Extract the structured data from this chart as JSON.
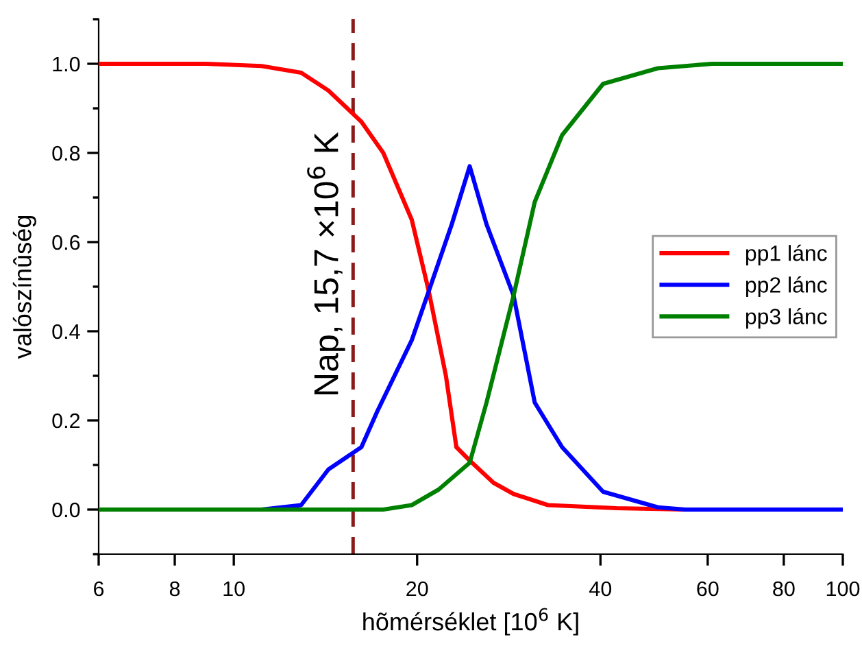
{
  "chart_data": {
    "type": "line",
    "xlabel": "hõmérséklet [10$^{6}$ K]",
    "ylabel": "valószínûség",
    "log": "x",
    "xlim": [
      6,
      100
    ],
    "xticks": [
      6,
      8,
      10,
      20,
      40,
      60,
      80,
      100
    ],
    "ylim": [
      -0.1,
      1.1
    ],
    "yticks": [
      {
        "value": 0.0,
        "label": "0.0"
      },
      {
        "value": 0.2,
        "label": "0.2"
      },
      {
        "value": 0.4,
        "label": "0.4"
      },
      {
        "value": 0.6,
        "label": "0.6"
      },
      {
        "value": 0.8,
        "label": "0.8"
      },
      {
        "value": 1.0,
        "label": "1.0"
      }
    ],
    "grid": false,
    "legend": "right",
    "line_style": "solid",
    "marker": "none",
    "ref_lines": [
      {
        "axis": "x",
        "value": 15.7,
        "label": "Nap, 15,7 ×10$^{6}$ K",
        "color": "#8b1a1a",
        "line_style": "dashed"
      }
    ],
    "series": [
      {
        "name": "pp1 lánc",
        "color": "#ff0000",
        "x": [
          6,
          9.0,
          11.1,
          12.9,
          14.3,
          16.2,
          17.6,
          19.6,
          20.9,
          22.3,
          23.2,
          24.4,
          26.7,
          28.8,
          32.8,
          42.5,
          55.1,
          100
        ],
        "values": [
          1.0,
          1.0,
          0.995,
          0.98,
          0.94,
          0.87,
          0.8,
          0.65,
          0.49,
          0.3,
          0.14,
          0.11,
          0.06,
          0.035,
          0.01,
          0.003,
          0.0,
          0.0
        ]
      },
      {
        "name": "pp2 lánc",
        "color": "#0000ff",
        "x": [
          6,
          11.1,
          12.9,
          14.3,
          16.2,
          17.2,
          19.6,
          20.9,
          22.8,
          24.4,
          26.0,
          28.8,
          31.2,
          34.6,
          40.4,
          49.7,
          55.1,
          100
        ],
        "values": [
          0.0,
          0.0,
          0.01,
          0.09,
          0.14,
          0.22,
          0.38,
          0.49,
          0.64,
          0.77,
          0.64,
          0.48,
          0.24,
          0.14,
          0.04,
          0.005,
          0.0,
          0.0
        ]
      },
      {
        "name": "pp3 lánc",
        "color": "#008000",
        "x": [
          6,
          17.6,
          19.6,
          21.7,
          24.4,
          26.0,
          28.8,
          31.2,
          34.6,
          40.4,
          49.7,
          61,
          100
        ],
        "values": [
          0.0,
          0.0,
          0.01,
          0.045,
          0.105,
          0.24,
          0.48,
          0.69,
          0.84,
          0.955,
          0.99,
          1.0,
          1.0
        ]
      }
    ]
  }
}
